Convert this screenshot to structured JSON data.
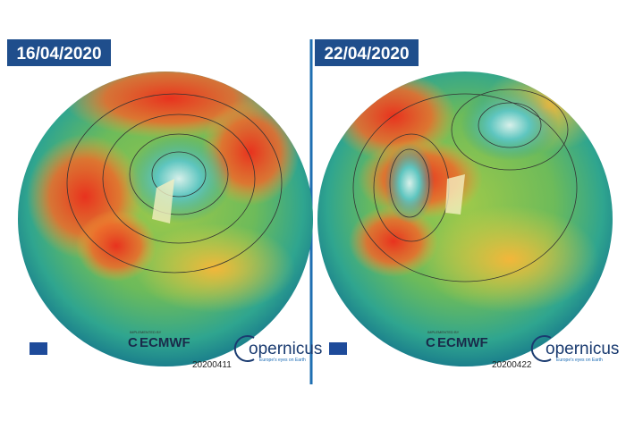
{
  "panels": [
    {
      "date": "16/04/2020",
      "implemented_by": "IMPLEMENTED BY",
      "ecmwf": "ECMWF",
      "copernicus": "opernicus",
      "tagline": "Europe's eyes on Earth",
      "code": "20200411"
    },
    {
      "date": "22/04/2020",
      "implemented_by": "IMPLEMENTED BY",
      "ecmwf": "ECMWF",
      "copernicus": "opernicus",
      "tagline": "Europe's eyes on Earth",
      "code": "20200422"
    }
  ]
}
